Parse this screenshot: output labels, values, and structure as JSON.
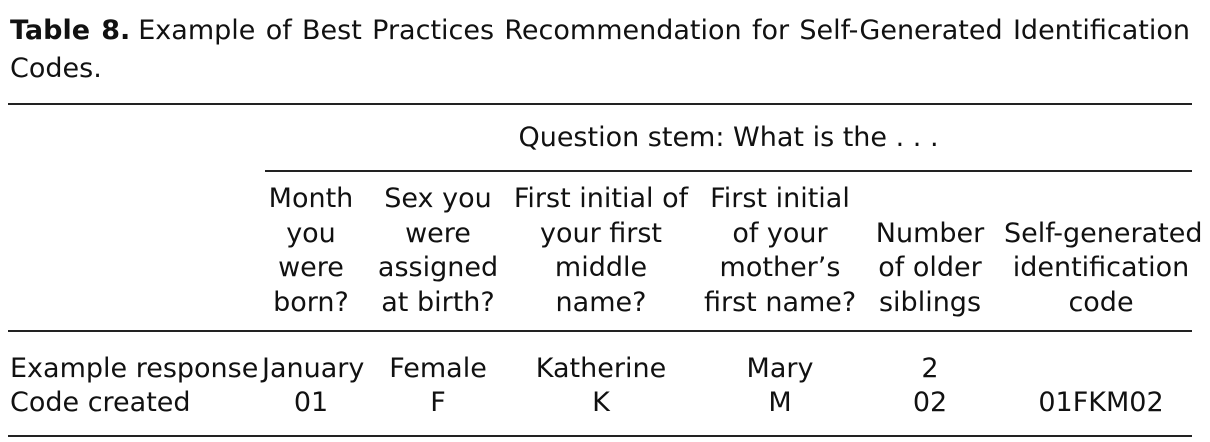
{
  "caption": {
    "label": "Table 8.",
    "text": "Example of Best Practices Recommendation for Self-Generated Identification Codes."
  },
  "table": {
    "stem": "Question stem: What is the . . .",
    "columns": [
      {
        "lines": [
          "Month",
          "you",
          "were",
          "born?"
        ]
      },
      {
        "lines": [
          "Sex you",
          "were",
          "assigned",
          "at birth?"
        ]
      },
      {
        "lines": [
          "First initial of",
          "your first",
          "middle",
          "name?"
        ]
      },
      {
        "lines": [
          "First initial",
          "of your",
          "mother’s",
          "first name?"
        ]
      },
      {
        "lines": [
          "Number",
          "of older",
          "siblings"
        ]
      },
      {
        "lines": [
          "Self-generated",
          "identification",
          "code"
        ]
      }
    ],
    "rows": [
      {
        "label": "Example response",
        "cells": [
          "January",
          "Female",
          "Katherine",
          "Mary",
          "2",
          ""
        ]
      },
      {
        "label": "Code created",
        "cells": [
          "01",
          "F",
          "K",
          "M",
          "02",
          "01FKM02"
        ]
      }
    ]
  }
}
